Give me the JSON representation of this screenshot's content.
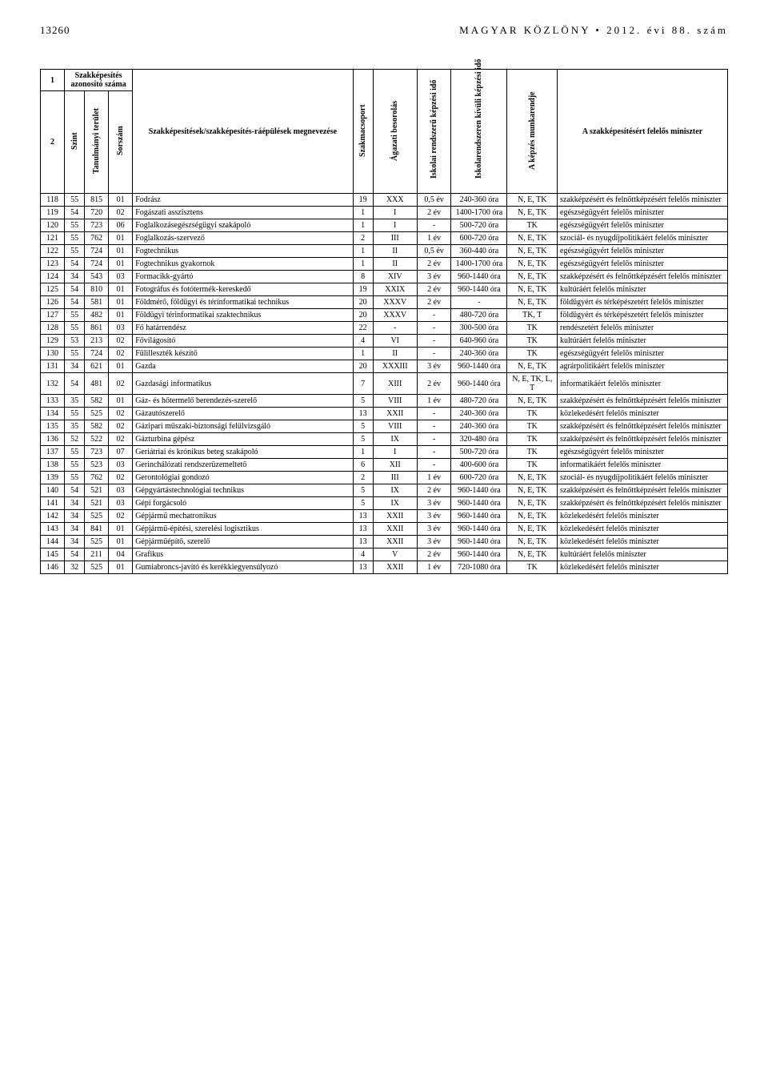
{
  "header": {
    "pagenum": "13260",
    "title": "MAGYAR KÖZLÖNY • 2012. évi 88. szám"
  },
  "table": {
    "head": {
      "c1_top": "1",
      "c1_bot": "2",
      "id_group": "Szakképesítés azonosító száma",
      "szint": "Szint",
      "terulet": "Tanulmányi terület",
      "sorszam": "Sorszám",
      "name": "Szakképesítések/szakképesítés-ráépülések megnevezése",
      "szakmacsoport": "Szakmacsoport",
      "agazat": "Ágazati besorolás",
      "iskolai": "Iskolai rendszerű képzési idő",
      "kivuli": "Iskolarendszeren kívüli képzési idő",
      "munkarend": "A képzés munkarendje",
      "minister": "A szakképesítésért felelős miniszter"
    },
    "rows": [
      {
        "n": "118",
        "a": "55",
        "b": "815",
        "c": "01",
        "name": "Fodrász",
        "grp": "19",
        "sec": "XXX",
        "st": "0,5 év",
        "ot": "240-360 óra",
        "mr": "N, E, TK",
        "min": "szakképzésért és felnőttképzésért felelős miniszter"
      },
      {
        "n": "119",
        "a": "54",
        "b": "720",
        "c": "02",
        "name": "Fogászati asszisztens",
        "grp": "1",
        "sec": "I",
        "st": "2 év",
        "ot": "1400-1700 óra",
        "mr": "N, E, TK",
        "min": "egészségügyért felelős miniszter"
      },
      {
        "n": "120",
        "a": "55",
        "b": "723",
        "c": "06",
        "name": "Foglalkozásegészségügyi szakápoló",
        "grp": "1",
        "sec": "I",
        "st": "-",
        "ot": "500-720 óra",
        "mr": "TK",
        "min": "egészségügyért felelős miniszter"
      },
      {
        "n": "121",
        "a": "55",
        "b": "762",
        "c": "01",
        "name": "Foglalkozás-szervező",
        "grp": "2",
        "sec": "III",
        "st": "1 év",
        "ot": "600-720 óra",
        "mr": "N, E, TK",
        "min": "szociál- és nyugdíjpolitikáért felelős miniszter"
      },
      {
        "n": "122",
        "a": "55",
        "b": "724",
        "c": "01",
        "name": "Fogtechnikus",
        "grp": "1",
        "sec": "II",
        "st": "0,5 év",
        "ot": "360-440 óra",
        "mr": "N, E, TK",
        "min": "egészségügyért felelős miniszter"
      },
      {
        "n": "123",
        "a": "54",
        "b": "724",
        "c": "01",
        "name": "Fogtechnikus gyakornok",
        "grp": "1",
        "sec": "II",
        "st": "2 év",
        "ot": "1400-1700 óra",
        "mr": "N, E, TK",
        "min": "egészségügyért felelős miniszter"
      },
      {
        "n": "124",
        "a": "34",
        "b": "543",
        "c": "03",
        "name": "Formacikk-gyártó",
        "grp": "8",
        "sec": "XIV",
        "st": "3 év",
        "ot": "960-1440 óra",
        "mr": "N, E, TK",
        "min": "szakképzésért és felnőttképzésért felelős miniszter"
      },
      {
        "n": "125",
        "a": "54",
        "b": "810",
        "c": "01",
        "name": "Fotográfus és fotótermék-kereskedő",
        "grp": "19",
        "sec": "XXIX",
        "st": "2 év",
        "ot": "960-1440 óra",
        "mr": "N, E, TK",
        "min": "kultúráért felelős miniszter"
      },
      {
        "n": "126",
        "a": "54",
        "b": "581",
        "c": "01",
        "name": "Földmérő, földügyi és térinformatikai technikus",
        "grp": "20",
        "sec": "XXXV",
        "st": "2 év",
        "ot": "-",
        "mr": "N, E, TK",
        "min": "földügyért és térképészetért felelős miniszter"
      },
      {
        "n": "127",
        "a": "55",
        "b": "482",
        "c": "01",
        "name": "Földügyi térinformatikai szaktechnikus",
        "grp": "20",
        "sec": "XXXV",
        "st": "-",
        "ot": "480-720 óra",
        "mr": "TK, T",
        "min": "földügyért és térképészetért felelős miniszter"
      },
      {
        "n": "128",
        "a": "55",
        "b": "861",
        "c": "03",
        "name": "Fő határrendész",
        "grp": "22",
        "sec": "-",
        "st": "-",
        "ot": "300-500 óra",
        "mr": "TK",
        "min": "rendészetért felelős miniszter"
      },
      {
        "n": "129",
        "a": "53",
        "b": "213",
        "c": "02",
        "name": "Fővilágosító",
        "grp": "4",
        "sec": "VI",
        "st": "-",
        "ot": "640-960 óra",
        "mr": "TK",
        "min": "kultúráért felelős miniszter"
      },
      {
        "n": "130",
        "a": "55",
        "b": "724",
        "c": "02",
        "name": "Fülilleszték készítő",
        "grp": "1",
        "sec": "II",
        "st": "-",
        "ot": "240-360 óra",
        "mr": "TK",
        "min": "egészségügyért felelős miniszter"
      },
      {
        "n": "131",
        "a": "34",
        "b": "621",
        "c": "01",
        "name": "Gazda",
        "grp": "20",
        "sec": "XXXIII",
        "st": "3 év",
        "ot": "960-1440 óra",
        "mr": "N, E, TK",
        "min": "agrárpolitikáért felelős miniszter"
      },
      {
        "n": "132",
        "a": "54",
        "b": "481",
        "c": "02",
        "name": "Gazdasági informatikus",
        "grp": "7",
        "sec": "XIII",
        "st": "2 év",
        "ot": "960-1440 óra",
        "mr": "N, E, TK, L, T",
        "min": "informatikáért felelős miniszter"
      },
      {
        "n": "133",
        "a": "35",
        "b": "582",
        "c": "01",
        "name": "Gáz- és hőtermelő berendezés-szerelő",
        "grp": "5",
        "sec": "VIII",
        "st": "1 év",
        "ot": "480-720 óra",
        "mr": "N, E, TK",
        "min": "szakképzésért és felnőttképzésért felelős miniszter"
      },
      {
        "n": "134",
        "a": "55",
        "b": "525",
        "c": "02",
        "name": "Gázautószerelő",
        "grp": "13",
        "sec": "XXII",
        "st": "-",
        "ot": "240-360 óra",
        "mr": "TK",
        "min": "közlekedésért felelős miniszter"
      },
      {
        "n": "135",
        "a": "35",
        "b": "582",
        "c": "02",
        "name": "Gázipari műszaki-biztonsági felülvizsgáló",
        "grp": "5",
        "sec": "VIII",
        "st": "-",
        "ot": "240-360 óra",
        "mr": "TK",
        "min": "szakképzésért és felnőttképzésért felelős miniszter"
      },
      {
        "n": "136",
        "a": "52",
        "b": "522",
        "c": "02",
        "name": "Gázturbina gépész",
        "grp": "5",
        "sec": "IX",
        "st": "-",
        "ot": "320-480 óra",
        "mr": "TK",
        "min": "szakképzésért és felnőttképzésért felelős miniszter"
      },
      {
        "n": "137",
        "a": "55",
        "b": "723",
        "c": "07",
        "name": "Geriátriai és krónikus beteg szakápoló",
        "grp": "1",
        "sec": "I",
        "st": "-",
        "ot": "500-720 óra",
        "mr": "TK",
        "min": "egészségügyért felelős miniszter"
      },
      {
        "n": "138",
        "a": "55",
        "b": "523",
        "c": "03",
        "name": "Gerinchálózati rendszerüzemeltető",
        "grp": "6",
        "sec": "XII",
        "st": "-",
        "ot": "400-600 óra",
        "mr": "TK",
        "min": "informatikáért felelős miniszter"
      },
      {
        "n": "139",
        "a": "55",
        "b": "762",
        "c": "02",
        "name": "Gerontológiai gondozó",
        "grp": "2",
        "sec": "III",
        "st": "1 év",
        "ot": "600-720 óra",
        "mr": "N, E, TK",
        "min": "szociál- és nyugdíjpolitikáért felelős miniszter"
      },
      {
        "n": "140",
        "a": "54",
        "b": "521",
        "c": "03",
        "name": "Gépgyártástechnológiai technikus",
        "grp": "5",
        "sec": "IX",
        "st": "2 év",
        "ot": "960-1440 óra",
        "mr": "N, E, TK",
        "min": "szakképzésért és felnőttképzésért felelős miniszter"
      },
      {
        "n": "141",
        "a": "34",
        "b": "521",
        "c": "03",
        "name": "Gépi forgácsoló",
        "grp": "5",
        "sec": "IX",
        "st": "3 év",
        "ot": "960-1440 óra",
        "mr": "N, E, TK",
        "min": "szakképzésért és felnőttképzésért felelős miniszter"
      },
      {
        "n": "142",
        "a": "34",
        "b": "525",
        "c": "02",
        "name": "Gépjármű mechatronikus",
        "grp": "13",
        "sec": "XXII",
        "st": "3 év",
        "ot": "960-1440 óra",
        "mr": "N, E, TK",
        "min": "közlekedésért felelős miniszter"
      },
      {
        "n": "143",
        "a": "34",
        "b": "841",
        "c": "01",
        "name": "Gépjármű-építési, szerelési logisztikus",
        "grp": "13",
        "sec": "XXII",
        "st": "3 év",
        "ot": "960-1440 óra",
        "mr": "N, E, TK",
        "min": "közlekedésért felelős miniszter"
      },
      {
        "n": "144",
        "a": "34",
        "b": "525",
        "c": "01",
        "name": "Gépjárműépítő, szerelő",
        "grp": "13",
        "sec": "XXII",
        "st": "3 év",
        "ot": "960-1440 óra",
        "mr": "N, E, TK",
        "min": "közlekedésért felelős miniszter"
      },
      {
        "n": "145",
        "a": "54",
        "b": "211",
        "c": "04",
        "name": "Grafikus",
        "grp": "4",
        "sec": "V",
        "st": "2 év",
        "ot": "960-1440 óra",
        "mr": "N, E, TK",
        "min": "kultúráért felelős miniszter"
      },
      {
        "n": "146",
        "a": "32",
        "b": "525",
        "c": "01",
        "name": "Gumiabroncs-javító és kerékkiegyensúlyozó",
        "grp": "13",
        "sec": "XXII",
        "st": "1 év",
        "ot": "720-1080 óra",
        "mr": "TK",
        "min": "közlekedésért felelős miniszter"
      }
    ]
  }
}
